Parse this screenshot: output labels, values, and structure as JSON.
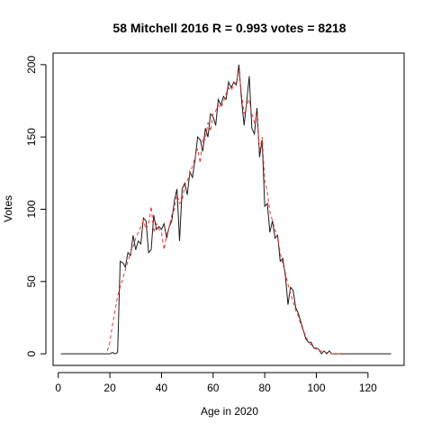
{
  "chart_data": {
    "type": "line",
    "title": "58 Mitchell 2016 R = 0.993 votes = 8218",
    "xlabel": "Age in 2020",
    "ylabel": "Votes",
    "xlim": [
      -2,
      134
    ],
    "ylim": [
      -8,
      208
    ],
    "xticks": [
      0,
      20,
      40,
      60,
      80,
      100,
      120
    ],
    "yticks": [
      0,
      50,
      100,
      150,
      200
    ],
    "grid": false,
    "legend": "none",
    "series": [
      {
        "color": "#1a1a1a",
        "style": "solid",
        "x": [
          1,
          2,
          3,
          4,
          5,
          6,
          7,
          8,
          9,
          10,
          11,
          12,
          13,
          14,
          15,
          16,
          17,
          18,
          19,
          20,
          21,
          22,
          23,
          24,
          25,
          26,
          27,
          28,
          29,
          30,
          31,
          32,
          33,
          34,
          35,
          36,
          37,
          38,
          39,
          40,
          41,
          42,
          43,
          44,
          45,
          46,
          47,
          48,
          49,
          50,
          51,
          52,
          53,
          54,
          55,
          56,
          57,
          58,
          59,
          60,
          61,
          62,
          63,
          64,
          65,
          66,
          67,
          68,
          69,
          70,
          71,
          72,
          73,
          74,
          75,
          76,
          77,
          78,
          79,
          80,
          81,
          82,
          83,
          84,
          85,
          86,
          87,
          88,
          89,
          90,
          91,
          92,
          93,
          94,
          95,
          96,
          97,
          98,
          99,
          100,
          101,
          102,
          103,
          104,
          105,
          106,
          107,
          108,
          109,
          110,
          111,
          112,
          113,
          114,
          115,
          116,
          117,
          118,
          119,
          120,
          121,
          122,
          123,
          124,
          125,
          126,
          127,
          128,
          129
        ],
        "values": [
          0,
          0,
          0,
          0,
          0,
          0,
          0,
          0,
          0,
          0,
          0,
          0,
          0,
          0,
          0,
          0,
          0,
          0,
          0,
          0,
          1,
          0,
          1,
          64,
          63,
          60,
          70,
          68,
          82,
          72,
          78,
          76,
          94,
          92,
          70,
          72,
          96,
          86,
          88,
          86,
          90,
          80,
          88,
          92,
          106,
          114,
          78,
          114,
          118,
          110,
          126,
          122,
          134,
          150,
          148,
          140,
          156,
          150,
          166,
          164,
          158,
          176,
          172,
          178,
          176,
          188,
          184,
          188,
          186,
          200,
          176,
          158,
          174,
          192,
          156,
          152,
          170,
          136,
          148,
          102,
          104,
          84,
          92,
          80,
          82,
          64,
          66,
          54,
          34,
          46,
          44,
          32,
          28,
          22,
          16,
          10,
          8,
          8,
          4,
          4,
          3,
          0,
          2,
          0,
          2,
          0,
          0,
          0,
          0,
          0,
          0,
          0,
          0,
          0,
          0,
          0,
          0,
          0,
          0,
          0,
          0,
          0,
          0,
          0,
          0,
          0,
          0,
          0,
          0
        ]
      },
      {
        "color": "#ff3333",
        "style": "dashed",
        "x": [
          19,
          20,
          21,
          22,
          23,
          24,
          25,
          26,
          27,
          28,
          29,
          30,
          31,
          32,
          33,
          34,
          35,
          36,
          37,
          38,
          39,
          40,
          41,
          42,
          43,
          44,
          45,
          46,
          47,
          48,
          49,
          50,
          51,
          52,
          53,
          54,
          55,
          56,
          57,
          58,
          59,
          60,
          61,
          62,
          63,
          64,
          65,
          66,
          67,
          68,
          69,
          70,
          71,
          72,
          73,
          74,
          75,
          76,
          77,
          78,
          79,
          80,
          81,
          82,
          83,
          84,
          85,
          86,
          87,
          88,
          89,
          90,
          91,
          92,
          93,
          94,
          95,
          96,
          97,
          98,
          99,
          100,
          101,
          102,
          103,
          104,
          105,
          106,
          107,
          108,
          109,
          110
        ],
        "values": [
          2,
          8,
          20,
          30,
          40,
          46,
          52,
          58,
          64,
          70,
          74,
          80,
          84,
          88,
          92,
          86,
          90,
          102,
          84,
          90,
          86,
          84,
          72,
          82,
          88,
          96,
          100,
          110,
          104,
          106,
          116,
          120,
          124,
          130,
          136,
          142,
          132,
          150,
          148,
          160,
          154,
          166,
          168,
          172,
          170,
          174,
          180,
          184,
          182,
          186,
          188,
          196,
          180,
          166,
          172,
          176,
          166,
          160,
          166,
          140,
          150,
          120,
          112,
          98,
          92,
          86,
          80,
          70,
          62,
          56,
          48,
          42,
          36,
          30,
          26,
          20,
          16,
          12,
          8,
          6,
          4,
          3,
          2,
          2,
          1,
          1,
          0,
          0,
          0,
          0,
          0,
          0
        ]
      }
    ]
  }
}
